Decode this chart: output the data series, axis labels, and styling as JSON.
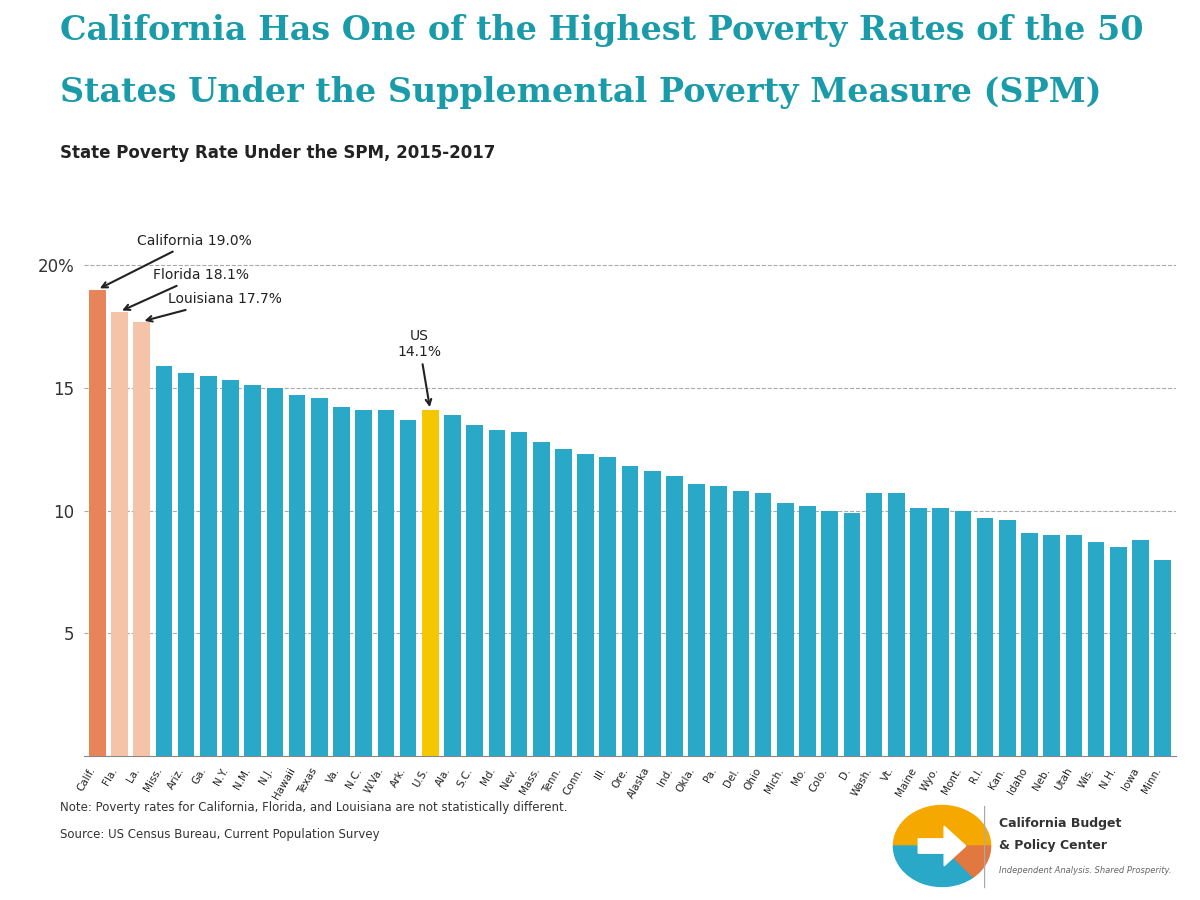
{
  "title_line1": "California Has One of the Highest Poverty Rates of the 50",
  "title_line2": "States Under the Supplemental Poverty Measure (SPM)",
  "subtitle": "State Poverty Rate Under the SPM, 2015-2017",
  "title_color": "#1A9BAA",
  "subtitle_color": "#222222",
  "note": "Note: Poverty rates for California, Florida, and Louisiana are not statistically different.",
  "source": "Source: US Census Bureau, Current Population Survey",
  "categories": [
    "Calif.",
    "Fla.",
    "La.",
    "Miss.",
    "Ariz.",
    "Ga.",
    "N.Y.",
    "N.M.",
    "N.J.",
    "Hawaii",
    "Texas",
    "Va.",
    "N.C.",
    "W.Va.",
    "Ark.",
    "U.S.",
    "Ala.",
    "S.C.",
    "Md.",
    "Nev.",
    "Mass.",
    "Tenn.",
    "Conn.",
    "Ill.",
    "Ore.",
    "Alaska",
    "Ind.",
    "Okla.",
    "Pa.",
    "Del.",
    "Ohio",
    "Mich.",
    "Mo.",
    "Colo.",
    "D.",
    "Wash.",
    "Vt.",
    "Maine",
    "Wyo.",
    "Mont.",
    "R.I.",
    "Kan.",
    "Idaho",
    "Neb.",
    "Utah",
    "Wis.",
    "N.H.",
    "Iowa",
    "Minn."
  ],
  "values": [
    19.0,
    18.1,
    17.7,
    15.9,
    15.6,
    15.5,
    15.3,
    15.1,
    15.0,
    14.7,
    14.6,
    14.2,
    14.1,
    14.1,
    13.7,
    14.1,
    13.9,
    13.5,
    13.3,
    13.2,
    12.8,
    12.5,
    12.3,
    12.2,
    11.8,
    11.6,
    11.4,
    11.1,
    11.0,
    10.8,
    10.7,
    10.3,
    10.2,
    10.0,
    9.9,
    10.7,
    10.7,
    10.1,
    10.1,
    10.0,
    9.7,
    9.6,
    9.1,
    9.0,
    9.0,
    8.7,
    8.5,
    8.8,
    8.0
  ],
  "bar_colors_special": {
    "0": "#E8845A",
    "1": "#F5C4A8",
    "2": "#F5C4A8",
    "15": "#F5C700"
  },
  "default_bar_color": "#29A8C8",
  "ylim": [
    0,
    22
  ],
  "yticks": [
    5,
    10,
    15,
    20
  ],
  "grid_color": "#AAAAAA",
  "background_color": "#FFFFFF",
  "separator_color": "#F5A800",
  "annotation_arrow_color": "#222222"
}
